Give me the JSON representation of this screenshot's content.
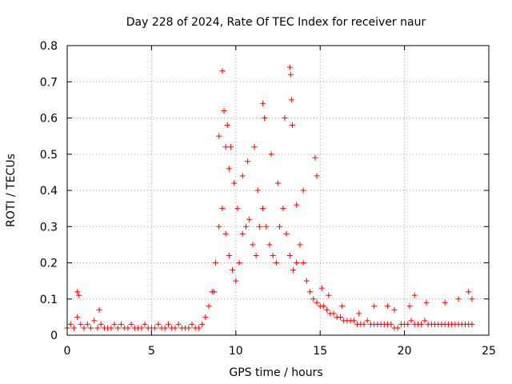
{
  "chart_data": {
    "type": "scatter",
    "title": "Day 228 of 2024, Rate Of TEC Index for receiver naur",
    "xlabel": "GPS time / hours",
    "ylabel": "ROTI / TECUs",
    "xlim": [
      0,
      25
    ],
    "ylim": [
      0,
      0.8
    ],
    "xticks": [
      "0",
      "5",
      "10",
      "15",
      "20",
      "25"
    ],
    "yticks": [
      "0",
      "0.1",
      "0.2",
      "0.3",
      "0.4",
      "0.5",
      "0.6",
      "0.7",
      "0.8"
    ],
    "grid": true,
    "marker": "+",
    "series_color": "#ff0000",
    "series": [
      {
        "x": [
          0.0,
          0.2,
          0.4,
          0.6,
          0.8,
          1.0,
          1.2,
          1.4,
          1.6,
          1.8,
          2.0,
          2.2,
          2.4,
          2.6,
          2.8,
          3.0,
          3.2,
          3.4,
          3.6,
          3.8,
          4.0,
          4.2,
          4.4,
          4.6,
          4.8,
          5.0,
          5.2,
          5.4,
          5.6,
          5.8,
          6.0,
          6.2,
          6.4,
          6.6,
          6.8,
          7.0,
          7.2,
          7.4,
          7.6,
          7.8,
          8.0,
          8.2,
          8.4,
          8.6,
          8.8,
          9.0,
          9.2,
          9.4,
          9.6,
          9.8,
          10.0,
          10.2,
          10.4,
          10.6,
          10.8,
          11.0,
          11.2,
          11.4,
          11.6,
          11.8,
          12.0,
          12.2,
          12.4,
          12.6,
          12.8,
          13.0,
          13.2,
          13.4,
          13.6,
          13.8,
          14.0,
          14.2,
          14.4,
          14.6,
          14.8,
          15.0,
          15.2,
          15.4,
          15.6,
          15.8,
          16.0,
          16.2,
          16.4,
          16.6,
          16.8,
          17.0,
          17.2,
          17.4,
          17.6,
          17.8,
          18.0,
          18.2,
          18.4,
          18.6,
          18.8,
          19.0,
          19.2,
          19.4,
          19.6,
          19.8,
          20.0,
          20.2,
          20.4,
          20.6,
          20.8,
          21.0,
          21.2,
          21.4,
          21.6,
          21.8,
          22.0,
          22.2,
          22.4,
          22.6,
          22.8,
          23.0,
          23.2,
          23.4,
          23.6,
          23.8,
          24.0
        ],
        "y": [
          0.02,
          0.03,
          0.02,
          0.05,
          0.03,
          0.02,
          0.03,
          0.02,
          0.04,
          0.02,
          0.03,
          0.02,
          0.02,
          0.02,
          0.03,
          0.02,
          0.03,
          0.02,
          0.02,
          0.03,
          0.02,
          0.02,
          0.02,
          0.03,
          0.02,
          0.02,
          0.02,
          0.03,
          0.02,
          0.02,
          0.03,
          0.02,
          0.02,
          0.03,
          0.02,
          0.02,
          0.02,
          0.03,
          0.02,
          0.02,
          0.03,
          0.05,
          0.08,
          0.12,
          0.2,
          0.3,
          0.35,
          0.28,
          0.22,
          0.18,
          0.15,
          0.2,
          0.28,
          0.3,
          0.32,
          0.25,
          0.22,
          0.3,
          0.35,
          0.3,
          0.25,
          0.22,
          0.2,
          0.3,
          0.35,
          0.28,
          0.22,
          0.18,
          0.2,
          0.25,
          0.2,
          0.15,
          0.12,
          0.1,
          0.09,
          0.08,
          0.08,
          0.07,
          0.06,
          0.06,
          0.05,
          0.05,
          0.04,
          0.04,
          0.04,
          0.04,
          0.03,
          0.03,
          0.03,
          0.04,
          0.03,
          0.03,
          0.03,
          0.03,
          0.03,
          0.03,
          0.03,
          0.02,
          0.02,
          0.03,
          0.03,
          0.03,
          0.04,
          0.03,
          0.03,
          0.03,
          0.04,
          0.03,
          0.03,
          0.03,
          0.03,
          0.03,
          0.03,
          0.03,
          0.03,
          0.03,
          0.03,
          0.03,
          0.03,
          0.03,
          0.03
        ]
      },
      {
        "x": [
          0.6,
          0.7,
          1.9,
          8.7,
          9.0,
          9.2,
          9.3,
          9.4,
          9.5,
          9.6,
          9.7,
          9.9,
          10.1,
          10.4,
          10.7,
          11.1,
          11.3,
          11.6,
          11.7,
          12.1,
          12.5,
          12.9,
          13.2,
          13.25,
          13.3,
          13.35,
          13.6,
          14.0,
          14.7,
          14.8,
          15.1,
          15.5,
          16.3,
          17.3,
          18.2,
          19.0,
          19.4,
          20.3,
          20.6,
          21.3,
          22.4,
          23.2,
          23.8,
          24.0
        ],
        "y": [
          0.12,
          0.11,
          0.07,
          0.12,
          0.55,
          0.73,
          0.62,
          0.52,
          0.58,
          0.46,
          0.52,
          0.42,
          0.35,
          0.44,
          0.48,
          0.52,
          0.4,
          0.64,
          0.6,
          0.5,
          0.42,
          0.6,
          0.74,
          0.72,
          0.65,
          0.58,
          0.36,
          0.4,
          0.49,
          0.44,
          0.13,
          0.11,
          0.08,
          0.06,
          0.08,
          0.08,
          0.07,
          0.08,
          0.11,
          0.09,
          0.09,
          0.1,
          0.12,
          0.1
        ]
      }
    ]
  }
}
